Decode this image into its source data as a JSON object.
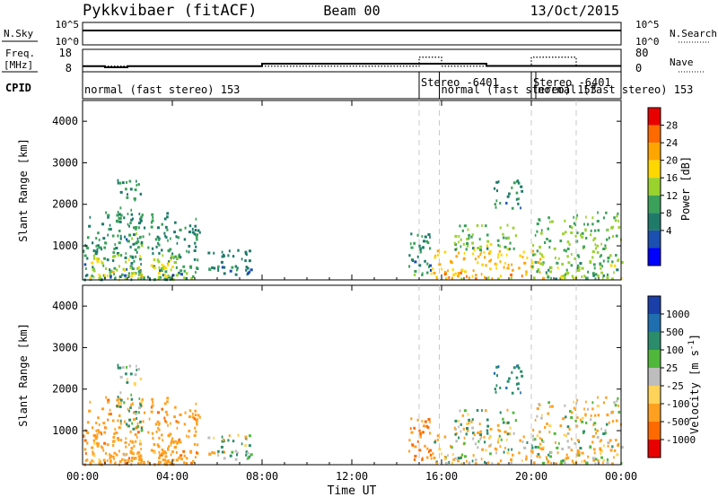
{
  "header": {
    "station": "Pykkvibaer (fitACF)",
    "beam": "Beam 00",
    "date": "13/Oct/2015"
  },
  "strips": {
    "nsky_label": "N.Sky",
    "nsky_ticks": [
      "10^5",
      "10^0"
    ],
    "nsearch_label": "N.Search",
    "nsearch_ticks": [
      "10^5",
      "10^0"
    ],
    "freq_label": [
      "Freq.",
      "[MHz]"
    ],
    "freq_ticks": [
      "18",
      "8"
    ],
    "nave_label": "Nave",
    "nave_ticks": [
      "80",
      "0"
    ],
    "cpid_label": "CPID",
    "cpid_annotations": [
      {
        "text": "normal (fast stereo) 153",
        "start_hour": 0.0
      },
      {
        "text": "Stereo -6401",
        "start_hour": 15.0
      },
      {
        "text": "normal (fast stereo) 153",
        "start_hour": 15.9
      },
      {
        "text": "Stereo -6401",
        "start_hour": 20.0
      },
      {
        "text": "normal (fast stereo) 153",
        "start_hour": 20.2
      }
    ],
    "freq_mhz_steps": [
      {
        "from": 0.0,
        "to": 1.0,
        "value": 10.5
      },
      {
        "from": 1.0,
        "to": 2.0,
        "value": 10.0
      },
      {
        "from": 2.0,
        "to": 8.0,
        "value": 10.5
      },
      {
        "from": 8.0,
        "to": 18.0,
        "value": 11.6
      },
      {
        "from": 18.0,
        "to": 24.0,
        "value": 10.6
      }
    ],
    "nave_steps": [
      {
        "from": 0.0,
        "to": 15.0,
        "value": 20
      },
      {
        "from": 15.0,
        "to": 16.0,
        "value": 52
      },
      {
        "from": 16.0,
        "to": 20.0,
        "value": 20
      },
      {
        "from": 20.0,
        "to": 22.0,
        "value": 52
      },
      {
        "from": 22.0,
        "to": 24.0,
        "value": 20
      }
    ]
  },
  "panels": {
    "ylabel": "Slant Range [km]",
    "xlabel": "Time UT",
    "y_ticks": [
      "1000",
      "2000",
      "3000",
      "4000"
    ],
    "x_ticks": [
      "00:00",
      "04:00",
      "08:00",
      "12:00",
      "16:00",
      "20:00",
      "00:00"
    ],
    "mode_change_hours": [
      15.0,
      15.9,
      20.0,
      22.0
    ],
    "power": {
      "title": "Power [dB]",
      "ticks": [
        "28",
        "24",
        "20",
        "16",
        "12",
        "8",
        "4"
      ],
      "colors": [
        "#e80000",
        "#ff6a00",
        "#ffa500",
        "#ffd700",
        "#99d22c",
        "#3aa05a",
        "#1f7a6a",
        "#1b4fb0",
        "#0000ff"
      ]
    },
    "velocity": {
      "title": "Velocity [m s^-1]",
      "ticks": [
        "1000",
        "500",
        "100",
        "25",
        "-25",
        "-100",
        "-500",
        "-1000"
      ],
      "colors": [
        "#1b3fa8",
        "#1f6fb0",
        "#2a8c6a",
        "#4fb83a",
        "#bdbdbd",
        "#ffd35a",
        "#ffa020",
        "#ff6a00",
        "#e80000"
      ]
    }
  },
  "chart_data": {
    "type": "heatmap",
    "x_unit": "hours UT",
    "y_unit": "km",
    "xlim": [
      0,
      24
    ],
    "ylim": [
      180,
      4500
    ],
    "scatter_regions": [
      {
        "hours": [
          0.0,
          5.2
        ],
        "range_km": [
          180,
          1800
        ],
        "power_db": 10,
        "velocity": -200
      },
      {
        "hours": [
          0.3,
          4.2
        ],
        "range_km": [
          180,
          800
        ],
        "power_db": 18,
        "velocity": -150
      },
      {
        "hours": [
          1.5,
          2.6
        ],
        "range_km": [
          1000,
          2600
        ],
        "power_db": 10,
        "velocity": 80
      },
      {
        "hours": [
          5.5,
          7.5
        ],
        "range_km": [
          300,
          900
        ],
        "power_db": 8,
        "velocity": 20
      },
      {
        "hours": [
          14.5,
          15.5
        ],
        "range_km": [
          300,
          1400
        ],
        "power_db": 10,
        "velocity": -300
      },
      {
        "hours": [
          15.5,
          20.5
        ],
        "range_km": [
          200,
          900
        ],
        "power_db": 22,
        "velocity": -40
      },
      {
        "hours": [
          16.5,
          19.5
        ],
        "range_km": [
          900,
          1500
        ],
        "power_db": 14,
        "velocity": 0
      },
      {
        "hours": [
          18.2,
          19.6
        ],
        "range_km": [
          1900,
          2600
        ],
        "power_db": 10,
        "velocity": 200
      },
      {
        "hours": [
          20.0,
          24.0
        ],
        "range_km": [
          200,
          1800
        ],
        "power_db": 14,
        "velocity": -60
      }
    ]
  }
}
